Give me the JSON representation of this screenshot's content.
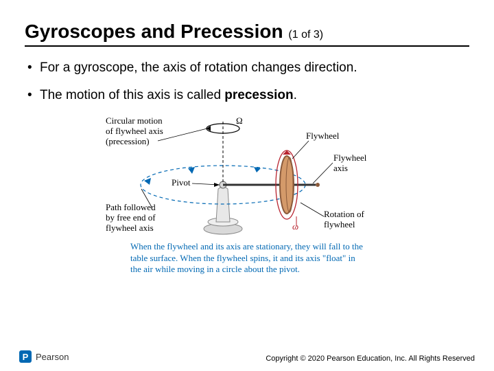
{
  "title": "Gyroscopes and Precession",
  "title_sub": "(1 of 3)",
  "bullets": [
    "For a gyroscope, the axis of rotation changes direction.",
    "The motion of this axis is called <b>precession</b>."
  ],
  "diagram": {
    "labels": {
      "precession": "Circular motion\nof flywheel axis\n(precession)",
      "omega_cap": "Ω",
      "flywheel": "Flywheel",
      "flywheel_axis": "Flywheel\naxis",
      "pivot": "Pivot",
      "path": "Path followed\nby free end of\nflywheel axis",
      "omega": "ω",
      "rotation": "Rotation of\nflywheel"
    },
    "caption": "When the flywheel and its axis are stationary, they will fall to the table surface. When the flywheel spins, it and its axis \"float\" in the air while moving in a circle about the pivot.",
    "colors": {
      "line": "#000000",
      "accent_blue": "#0168b3",
      "accent_red": "#b8232f",
      "flywheel_body": "#d49a6a",
      "flywheel_rim": "#8a5a3b",
      "pedestal": "#d9d9d9",
      "caption_color": "#0168b3"
    }
  },
  "footer": "Copyright © 2020 Pearson Education, Inc. All Rights Reserved",
  "brand": "Pearson"
}
